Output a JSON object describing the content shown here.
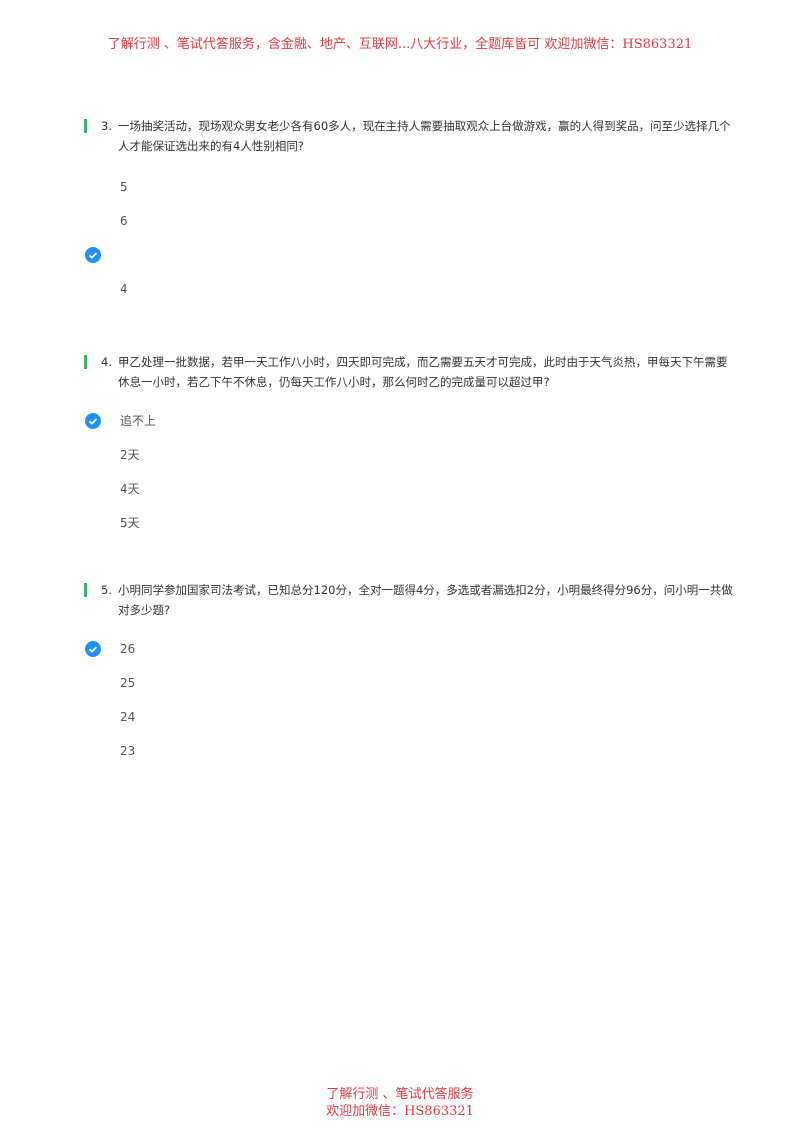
{
  "banner": "了解行测 、笔试代答服务，含金融、地产、互联网...八大行业，全题库皆可 欢迎加微信：HS863321",
  "footer": {
    "line1": "了解行测 、笔试代答服务",
    "line2": "欢迎加微信：HS863321"
  },
  "accent_color": "#3bb56a",
  "check_color": "#1e90ff",
  "questions": [
    {
      "number": "3.",
      "text": "一场抽奖活动，现场观众男女老少各有60多人，现在主持人需要抽取观众上台做游戏，赢的人得到奖品，问至少选择几个人才能保证选出来的有4人性别相同?",
      "options": [
        {
          "label": "5",
          "selected": false
        },
        {
          "label": "6",
          "selected": false
        },
        {
          "label": "",
          "selected": true
        },
        {
          "label": "4",
          "selected": false
        }
      ]
    },
    {
      "number": "4.",
      "text": "甲乙处理一批数据，若甲一天工作八小时，四天即可完成，而乙需要五天才可完成，此时由于天气炎热，甲每天下午需要休息一小时，若乙下午不休息，仍每天工作八小时，那么何时乙的完成量可以超过甲?",
      "options": [
        {
          "label": "追不上",
          "selected": true
        },
        {
          "label": "2天",
          "selected": false
        },
        {
          "label": "4天",
          "selected": false
        },
        {
          "label": "5天",
          "selected": false
        }
      ]
    },
    {
      "number": "5.",
      "text": "小明同学参加国家司法考试，已知总分120分，全对一题得4分，多选或者漏选扣2分，小明最终得分96分，问小明一共做对多少题?",
      "options": [
        {
          "label": "26",
          "selected": true
        },
        {
          "label": "25",
          "selected": false
        },
        {
          "label": "24",
          "selected": false
        },
        {
          "label": "23",
          "selected": false
        }
      ]
    }
  ]
}
